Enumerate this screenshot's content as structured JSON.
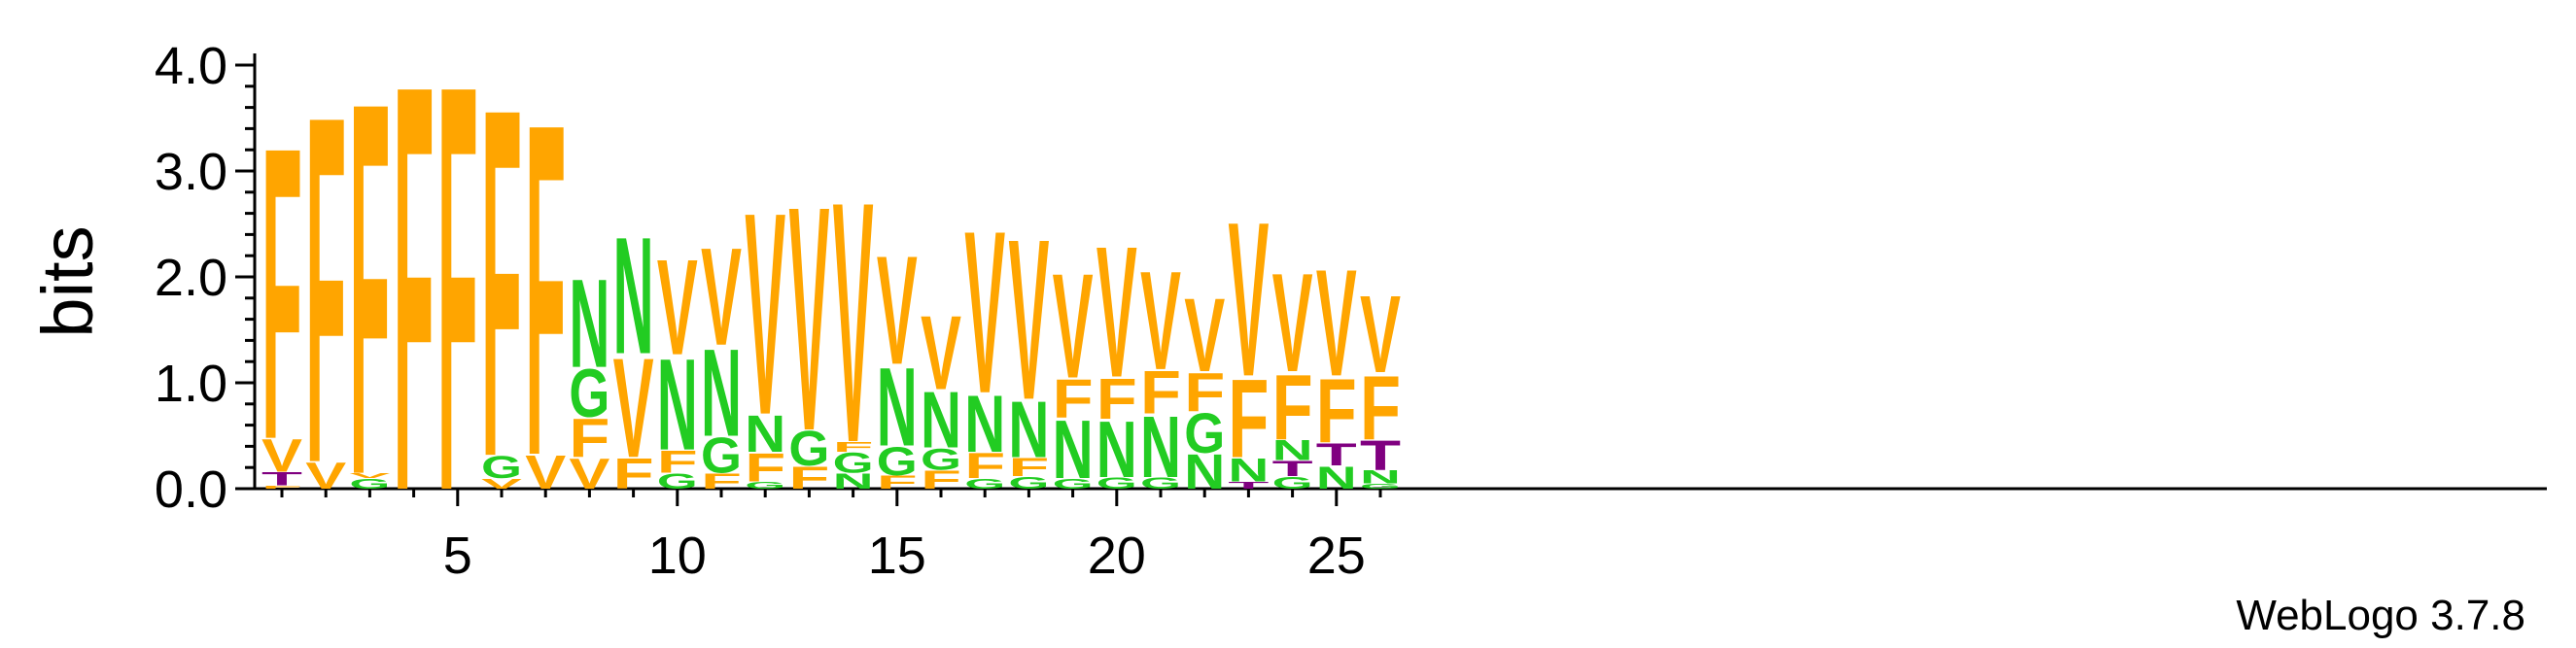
{
  "chart_data": {
    "type": "sequence-logo",
    "ylabel": "bits",
    "xlabel": "",
    "ylim": [
      0,
      4.0
    ],
    "yticks": [
      "0.0",
      "1.0",
      "2.0",
      "3.0",
      "4.0"
    ],
    "y_minor_step": 0.2,
    "xlim": [
      0.5,
      26.5
    ],
    "xticks": [
      "5",
      "10",
      "15",
      "20",
      "25"
    ],
    "credit": "WebLogo 3.7.8",
    "colors": {
      "F": "#FFA500",
      "V": "#FFA500",
      "G": "#22CC22",
      "N": "#22CC22",
      "T": "#800080"
    },
    "positions": [
      {
        "pos": 1,
        "stack": [
          [
            "F",
            0.03
          ],
          [
            "T",
            0.13
          ],
          [
            "V",
            0.32
          ],
          [
            "F",
            2.88
          ]
        ]
      },
      {
        "pos": 2,
        "stack": [
          [
            "V",
            0.26
          ],
          [
            "F",
            3.42
          ]
        ]
      },
      {
        "pos": 3,
        "stack": [
          [
            "G",
            0.1
          ],
          [
            "V",
            0.05
          ],
          [
            "F",
            3.67
          ]
        ]
      },
      {
        "pos": 4,
        "stack": [
          [
            "F",
            4.0
          ]
        ]
      },
      {
        "pos": 5,
        "stack": [
          [
            "F",
            4.0
          ]
        ]
      },
      {
        "pos": 6,
        "stack": [
          [
            "V",
            0.1
          ],
          [
            "G",
            0.22
          ],
          [
            "F",
            3.43
          ]
        ]
      },
      {
        "pos": 7,
        "stack": [
          [
            "V",
            0.33
          ],
          [
            "F",
            3.27
          ]
        ]
      },
      {
        "pos": 8,
        "stack": [
          [
            "V",
            0.3
          ],
          [
            "F",
            0.38
          ],
          [
            "G",
            0.47
          ],
          [
            "N",
            0.87
          ]
        ]
      },
      {
        "pos": 9,
        "stack": [
          [
            "F",
            0.3
          ],
          [
            "V",
            0.98
          ],
          [
            "N",
            1.15
          ]
        ]
      },
      {
        "pos": 10,
        "stack": [
          [
            "G",
            0.15
          ],
          [
            "F",
            0.22
          ],
          [
            "N",
            0.9
          ],
          [
            "V",
            0.94
          ]
        ]
      },
      {
        "pos": 11,
        "stack": [
          [
            "F",
            0.15
          ],
          [
            "G",
            0.35
          ],
          [
            "N",
            0.86
          ],
          [
            "V",
            0.96
          ]
        ]
      },
      {
        "pos": 12,
        "stack": [
          [
            "G",
            0.07
          ],
          [
            "F",
            0.28
          ],
          [
            "N",
            0.36
          ],
          [
            "V",
            1.99
          ]
        ]
      },
      {
        "pos": 13,
        "stack": [
          [
            "F",
            0.22
          ],
          [
            "G",
            0.34
          ],
          [
            "V",
            2.21
          ]
        ]
      },
      {
        "pos": 14,
        "stack": [
          [
            "N",
            0.15
          ],
          [
            "G",
            0.2
          ],
          [
            "F",
            0.1
          ],
          [
            "V",
            2.37
          ]
        ]
      },
      {
        "pos": 15,
        "stack": [
          [
            "F",
            0.13
          ],
          [
            "G",
            0.28
          ],
          [
            "N",
            0.77
          ],
          [
            "V",
            1.07
          ]
        ]
      },
      {
        "pos": 16,
        "stack": [
          [
            "F",
            0.18
          ],
          [
            "G",
            0.21
          ],
          [
            "N",
            0.55
          ],
          [
            "V",
            0.73
          ]
        ]
      },
      {
        "pos": 17,
        "stack": [
          [
            "G",
            0.1
          ],
          [
            "F",
            0.25
          ],
          [
            "N",
            0.56
          ],
          [
            "V",
            1.6
          ]
        ]
      },
      {
        "pos": 18,
        "stack": [
          [
            "G",
            0.12
          ],
          [
            "F",
            0.18
          ],
          [
            "N",
            0.55
          ],
          [
            "V",
            1.58
          ]
        ]
      },
      {
        "pos": 19,
        "stack": [
          [
            "G",
            0.1
          ],
          [
            "N",
            0.57
          ],
          [
            "F",
            0.38
          ],
          [
            "V",
            1.03
          ]
        ]
      },
      {
        "pos": 20,
        "stack": [
          [
            "G",
            0.11
          ],
          [
            "N",
            0.55
          ],
          [
            "F",
            0.4
          ],
          [
            "V",
            1.29
          ]
        ]
      },
      {
        "pos": 21,
        "stack": [
          [
            "G",
            0.11
          ],
          [
            "N",
            0.6
          ],
          [
            "F",
            0.42
          ],
          [
            "V",
            0.97
          ]
        ]
      },
      {
        "pos": 22,
        "stack": [
          [
            "N",
            0.34
          ],
          [
            "G",
            0.39
          ],
          [
            "F",
            0.38
          ],
          [
            "V",
            0.72
          ]
        ]
      },
      {
        "pos": 23,
        "stack": [
          [
            "T",
            0.07
          ],
          [
            "N",
            0.23
          ],
          [
            "F",
            0.77
          ],
          [
            "V",
            1.52
          ]
        ]
      },
      {
        "pos": 24,
        "stack": [
          [
            "G",
            0.12
          ],
          [
            "T",
            0.15
          ],
          [
            "N",
            0.2
          ],
          [
            "F",
            0.64
          ],
          [
            "V",
            0.97
          ]
        ]
      },
      {
        "pos": 25,
        "stack": [
          [
            "N",
            0.22
          ],
          [
            "T",
            0.22
          ],
          [
            "F",
            0.63
          ],
          [
            "V",
            1.05
          ]
        ]
      },
      {
        "pos": 26,
        "stack": [
          [
            "G",
            0.05
          ],
          [
            "N",
            0.13
          ],
          [
            "T",
            0.29
          ],
          [
            "F",
            0.63
          ],
          [
            "V",
            0.76
          ]
        ]
      }
    ]
  }
}
